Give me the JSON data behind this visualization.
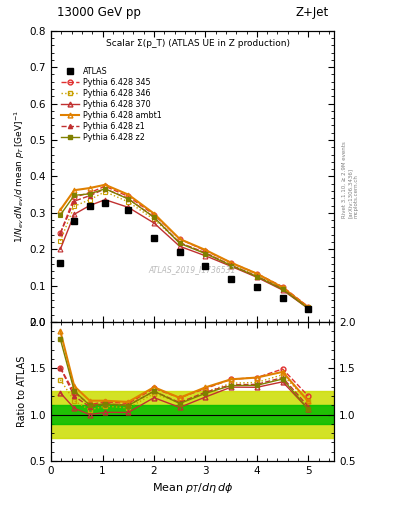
{
  "title_top": "13000 GeV pp",
  "title_right": "Z+Jet",
  "plot_title": "Scalar Σ(p_T) (ATLAS UE in Z production)",
  "xlabel": "Mean p_T/dη dϕ",
  "ylabel_ratio": "Ratio to ATLAS",
  "watermark": "ATLAS_2019_I1736531",
  "right_label": "Rivet 3.1.10, ≥ 2.9M events\n[arXiv:1306.3436]\nmcplots.cern.ch",
  "x_atlas": [
    0.18,
    0.45,
    0.75,
    1.05,
    1.5,
    2.0,
    2.5,
    3.0,
    3.5,
    4.0,
    4.5,
    5.0
  ],
  "y_atlas": [
    0.162,
    0.277,
    0.32,
    0.328,
    0.308,
    0.23,
    0.193,
    0.153,
    0.118,
    0.095,
    0.065,
    0.035
  ],
  "x_mc": [
    0.18,
    0.45,
    0.75,
    1.05,
    1.5,
    2.0,
    2.5,
    3.0,
    3.5,
    4.0,
    4.5,
    5.0
  ],
  "y_345": [
    0.244,
    0.343,
    0.355,
    0.373,
    0.345,
    0.295,
    0.228,
    0.196,
    0.163,
    0.133,
    0.097,
    0.042
  ],
  "y_346": [
    0.223,
    0.318,
    0.336,
    0.358,
    0.33,
    0.282,
    0.218,
    0.19,
    0.158,
    0.128,
    0.093,
    0.04
  ],
  "y_370": [
    0.2,
    0.296,
    0.32,
    0.336,
    0.315,
    0.272,
    0.208,
    0.182,
    0.153,
    0.123,
    0.088,
    0.037
  ],
  "y_ambt1": [
    0.308,
    0.362,
    0.368,
    0.377,
    0.35,
    0.298,
    0.228,
    0.198,
    0.163,
    0.133,
    0.095,
    0.04
  ],
  "y_z1": [
    0.244,
    0.332,
    0.347,
    0.366,
    0.339,
    0.288,
    0.218,
    0.19,
    0.156,
    0.126,
    0.091,
    0.038
  ],
  "y_z2": [
    0.294,
    0.348,
    0.352,
    0.366,
    0.338,
    0.288,
    0.216,
    0.188,
    0.155,
    0.125,
    0.09,
    0.037
  ],
  "color_345": "#e03030",
  "color_346": "#c8a000",
  "color_370": "#c03030",
  "color_ambt1": "#e08000",
  "color_z1": "#c03030",
  "color_z2": "#808000",
  "band_inner_color": "#00bb00",
  "band_outer_color": "#ccdd00",
  "ylim_main": [
    0.0,
    0.8
  ],
  "ylim_ratio": [
    0.5,
    2.0
  ],
  "xlim": [
    0.0,
    5.5
  ],
  "yticks_main": [
    0.0,
    0.1,
    0.2,
    0.3,
    0.4,
    0.5,
    0.6,
    0.7,
    0.8
  ],
  "yticks_ratio": [
    0.5,
    1.0,
    1.5,
    2.0
  ]
}
